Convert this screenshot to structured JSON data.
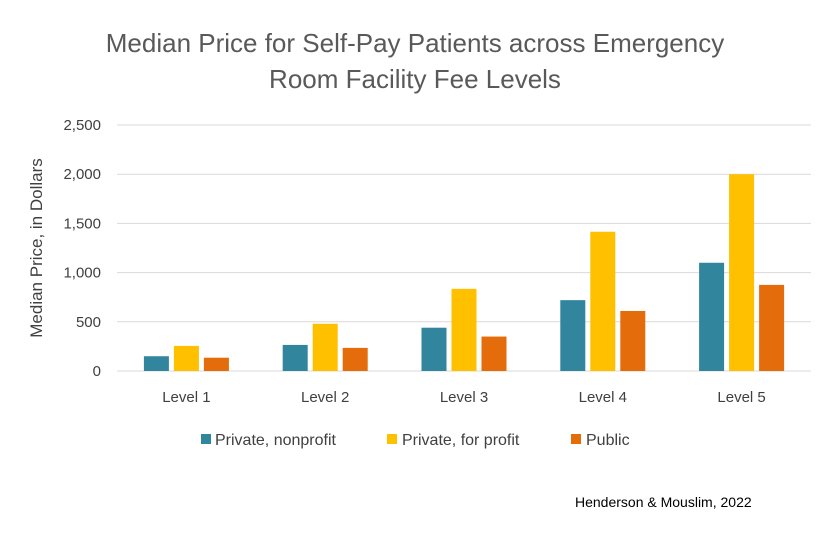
{
  "chart_data": {
    "type": "bar",
    "title_lines": [
      "Median Price for Self-Pay Patients across Emergency",
      "Room Facility Fee Levels"
    ],
    "ylabel": "Median Price, in Dollars",
    "xlabel": "",
    "categories": [
      "Level 1",
      "Level 2",
      "Level 3",
      "Level 4",
      "Level 5"
    ],
    "series": [
      {
        "name": "Private, nonprofit",
        "color": "#31859C",
        "values": [
          150,
          265,
          440,
          720,
          1100
        ]
      },
      {
        "name": "Private, for profit",
        "color": "#FFC000",
        "values": [
          255,
          480,
          835,
          1415,
          2000
        ]
      },
      {
        "name": "Public",
        "color": "#E46C0A",
        "values": [
          135,
          235,
          350,
          610,
          875
        ]
      }
    ],
    "ylim": [
      0,
      2500
    ],
    "yticks": [
      0,
      500,
      1000,
      1500,
      2000,
      2500
    ],
    "ytick_labels": [
      "0",
      "500",
      "1,000",
      "1,500",
      "2,000",
      "2,500"
    ],
    "grid": true,
    "legend_position": "bottom"
  },
  "source": "Henderson & Mouslim, 2022"
}
